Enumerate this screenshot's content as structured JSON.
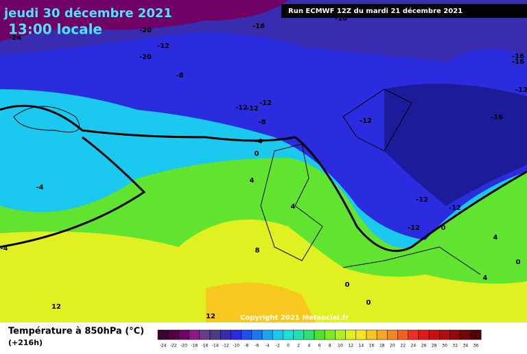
{
  "header": {
    "date": "jeudi 30 décembre 2021",
    "time": "13:00 locale",
    "run": "Run ECMWF 12Z du mardi 21 décembre 2021"
  },
  "map": {
    "contour_labels": [
      -20,
      -24,
      -16,
      -16,
      -12,
      -20,
      -8,
      -12,
      -12,
      -12,
      -8,
      -4,
      0,
      -12,
      -16,
      -16,
      -12,
      -16,
      -4,
      -4,
      4,
      4,
      8,
      -12,
      -12,
      -12,
      0,
      4,
      0,
      4,
      0,
      0,
      12,
      12
    ],
    "copyright": "Copyright 2021 Meteociel.fr"
  },
  "legend": {
    "title": "Température à 850hPa (°C)",
    "lead": "(+216h)",
    "ticks": [
      -24,
      -22,
      -20,
      -18,
      -16,
      -14,
      -12,
      -10,
      -8,
      -6,
      -4,
      -2,
      0,
      2,
      4,
      6,
      8,
      10,
      12,
      14,
      16,
      18,
      20,
      22,
      24,
      26,
      28,
      30,
      32,
      34,
      36
    ],
    "colors": [
      "#3a0030",
      "#55003f",
      "#6e0066",
      "#8a1a8a",
      "#6a3a8a",
      "#4a3e80",
      "#3a2cb0",
      "#2b2ce0",
      "#1c50f0",
      "#1a78f5",
      "#1aa2f5",
      "#1ac8f0",
      "#1ae0e0",
      "#20e0b0",
      "#30e070",
      "#50e030",
      "#80ea20",
      "#b0f020",
      "#e0f020",
      "#f8e620",
      "#f8c820",
      "#f8a820",
      "#f08820",
      "#f06020",
      "#f03020",
      "#e01818",
      "#c81010",
      "#b00c0c",
      "#900808",
      "#700404",
      "#500000"
    ]
  }
}
